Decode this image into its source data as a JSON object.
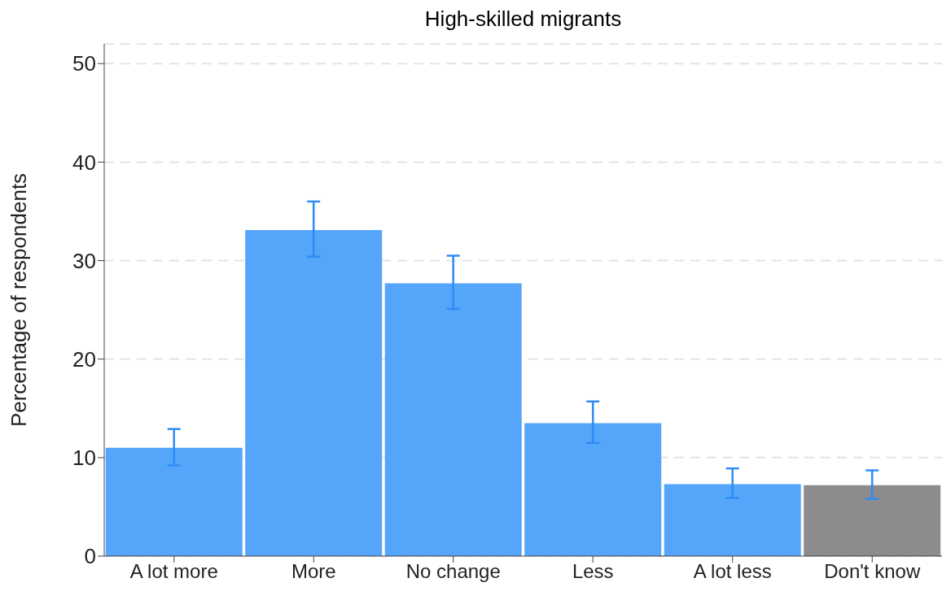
{
  "chart_data": {
    "type": "bar",
    "title": "High-skilled migrants",
    "ylabel": "Percentage of respondents",
    "categories": [
      "A lot more",
      "More",
      "No change",
      "Less",
      "A lot less",
      "Don't know"
    ],
    "values": [
      11.0,
      33.1,
      27.7,
      13.5,
      7.3,
      7.2
    ],
    "colors": [
      "#55a5fb",
      "#55a5fb",
      "#55a5fb",
      "#55a5fb",
      "#55a5fb",
      "#8c8c8c"
    ],
    "errors": [
      [
        9.2,
        12.9
      ],
      [
        30.4,
        36.0
      ],
      [
        25.1,
        30.5
      ],
      [
        11.5,
        15.7
      ],
      [
        5.9,
        8.9
      ],
      [
        5.8,
        8.7
      ]
    ],
    "ylim": [
      0,
      52
    ],
    "yticks": [
      0,
      10,
      20,
      30,
      40,
      50
    ],
    "grid": "y"
  }
}
